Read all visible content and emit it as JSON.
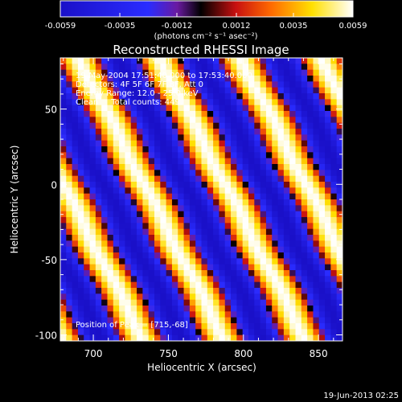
{
  "colorbar": {
    "ticks": [
      "-0.0059",
      "-0.0035",
      "-0.0012",
      "0.0012",
      "0.0035",
      "0.0059"
    ],
    "units": "(photons cm⁻² s⁻¹ asec⁻²)"
  },
  "chart_data": {
    "type": "heatmap",
    "title": "Reconstructed RHESSI Image",
    "xlabel": "Heliocentric X (arcsec)",
    "ylabel": "Heliocentric Y (arcsec)",
    "xlim": [
      678,
      866
    ],
    "ylim": [
      -104,
      84
    ],
    "xticks": [
      "700",
      "750",
      "800",
      "850"
    ],
    "yticks": [
      "-100",
      "-50",
      "0",
      "50"
    ],
    "value_range": [
      -0.0059,
      0.0059
    ],
    "colormap": "blue-purple-black-red-yellow-white",
    "annotations": [
      "19-May-2004 17:51:40.000 to 17:53:40.000",
      "Detectors: 4F 5F 6F 7F 8F, Att 0",
      "Energy Range: 12.0 - 25.0 keV",
      "Clean     Total counts: 449.",
      "Position of Peak = [715,-68]"
    ],
    "stripe_pattern": {
      "description": "diagonal fringe pattern",
      "period_arcsec": 54,
      "peak_position": [
        715,
        -68
      ]
    }
  },
  "footer": {
    "timestamp": "19-Jun-2013 02:25"
  }
}
